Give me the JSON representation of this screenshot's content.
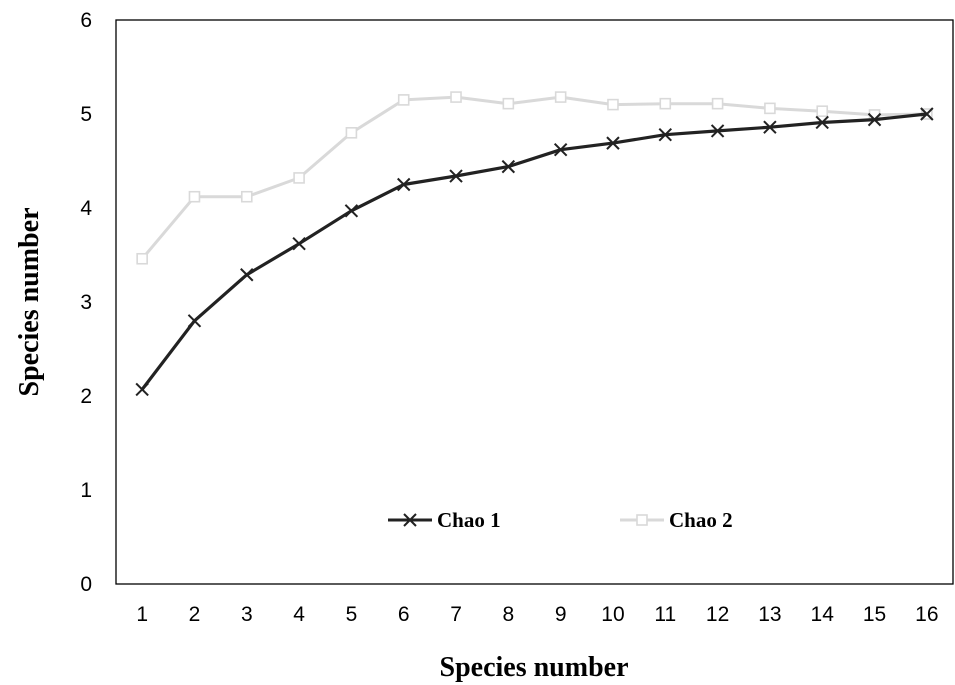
{
  "chart_data": {
    "type": "line",
    "x": [
      1,
      2,
      3,
      4,
      5,
      6,
      7,
      8,
      9,
      10,
      11,
      12,
      13,
      14,
      15,
      16
    ],
    "series": [
      {
        "name": "Chao 1",
        "values": [
          2.07,
          2.8,
          3.29,
          3.62,
          3.97,
          4.25,
          4.34,
          4.44,
          4.62,
          4.69,
          4.78,
          4.82,
          4.86,
          4.91,
          4.94,
          5.0
        ],
        "color": "#222222",
        "marker": "x"
      },
      {
        "name": "Chao 2",
        "values": [
          3.46,
          4.12,
          4.12,
          4.32,
          4.8,
          5.15,
          5.18,
          5.11,
          5.18,
          5.1,
          5.11,
          5.11,
          5.06,
          5.03,
          4.99,
          5.0
        ],
        "color": "#d9d9d9",
        "marker": "square"
      }
    ],
    "title": "",
    "xlabel": "Species number",
    "ylabel": "Species number",
    "xticks": [
      "1",
      "2",
      "3",
      "4",
      "5",
      "6",
      "7",
      "8",
      "9",
      "10",
      "11",
      "12",
      "13",
      "14",
      "15",
      "16"
    ],
    "yticks": [
      "0",
      "1",
      "2",
      "3",
      "4",
      "5",
      "6"
    ],
    "ylim": [
      0,
      6
    ],
    "grid": false,
    "legend_position": "inside-bottom-center"
  }
}
